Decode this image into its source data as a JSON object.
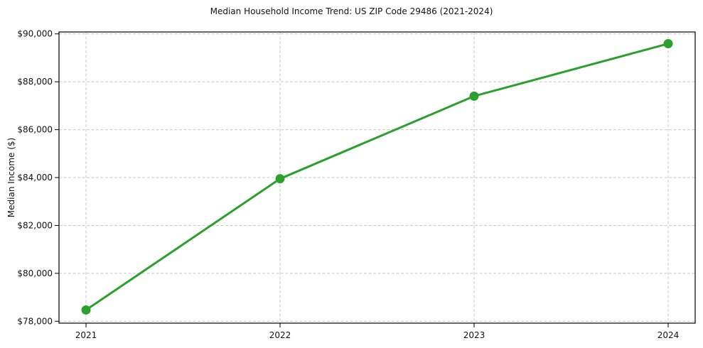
{
  "chart_data": {
    "type": "line",
    "title": "Median Household Income Trend: US ZIP Code 29486 (2021-2024)",
    "xlabel": "",
    "ylabel": "Median Income ($)",
    "categories": [
      "2021",
      "2022",
      "2023",
      "2024"
    ],
    "values": [
      78470,
      83950,
      87400,
      89590
    ],
    "ylim": [
      78000,
      90000
    ],
    "ytick_step": 2000,
    "ytick_labels": [
      "$78,000",
      "$80,000",
      "$82,000",
      "$84,000",
      "$86,000",
      "$88,000",
      "$90,000"
    ],
    "grid": {
      "horizontal": true,
      "vertical": true,
      "style": "dashed"
    },
    "legend": "none",
    "marker": "circle",
    "line_color": "#2ca02c",
    "grid_color": "#c8c8c8",
    "axes_color": "#000000",
    "text_color": "#111111"
  }
}
